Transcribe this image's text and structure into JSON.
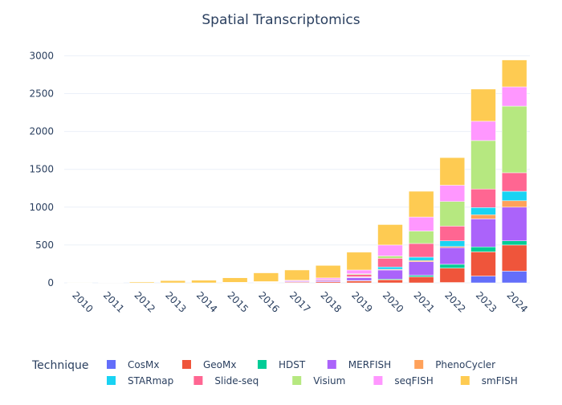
{
  "chart_data": {
    "type": "bar",
    "stacked": true,
    "title": "Spatial Transcriptomics",
    "xlabel": "",
    "ylabel": "",
    "categories": [
      "2010",
      "2011",
      "2012",
      "2013",
      "2014",
      "2015",
      "2016",
      "2017",
      "2018",
      "2019",
      "2020",
      "2021",
      "2022",
      "2023",
      "2024"
    ],
    "ylim": [
      0,
      3100
    ],
    "yticks": [
      0,
      500,
      1000,
      1500,
      2000,
      2500,
      3000
    ],
    "ytick_labels": [
      "0",
      "500",
      "1000",
      "1500",
      "2000",
      "2500",
      "3000"
    ],
    "grid": true,
    "legend": {
      "title": "Technique",
      "placement": "bottom"
    },
    "series": [
      {
        "name": "CosMx",
        "color": "#636efa",
        "values": [
          0,
          0,
          0,
          0,
          0,
          0,
          0,
          0,
          0,
          0,
          0,
          0,
          5,
          90,
          155
        ]
      },
      {
        "name": "GeoMx",
        "color": "#ef553b",
        "values": [
          0,
          0,
          0,
          0,
          0,
          3,
          5,
          10,
          15,
          25,
          40,
          80,
          190,
          320,
          345
        ]
      },
      {
        "name": "HDST",
        "color": "#00cc96",
        "values": [
          0,
          0,
          0,
          0,
          0,
          0,
          0,
          0,
          0,
          5,
          10,
          20,
          50,
          65,
          55
        ]
      },
      {
        "name": "MERFISH",
        "color": "#ab63fa",
        "values": [
          0,
          0,
          0,
          0,
          0,
          2,
          5,
          10,
          15,
          40,
          120,
          180,
          220,
          370,
          445
        ]
      },
      {
        "name": "PhenoCycler",
        "color": "#ffa15a",
        "values": [
          0,
          0,
          0,
          0,
          0,
          0,
          0,
          0,
          0,
          5,
          10,
          15,
          15,
          55,
          85
        ]
      },
      {
        "name": "STARmap",
        "color": "#19d3f3",
        "values": [
          0,
          0,
          0,
          0,
          0,
          0,
          0,
          0,
          0,
          5,
          30,
          45,
          75,
          95,
          125
        ]
      },
      {
        "name": "Slide-seq",
        "color": "#ff6692",
        "values": [
          0,
          0,
          0,
          0,
          0,
          0,
          2,
          5,
          10,
          30,
          115,
          180,
          195,
          245,
          245
        ]
      },
      {
        "name": "Visium",
        "color": "#b6e880",
        "values": [
          0,
          0,
          0,
          0,
          0,
          0,
          0,
          0,
          5,
          10,
          30,
          165,
          325,
          640,
          880
        ]
      },
      {
        "name": "seqFISH",
        "color": "#ff97ff",
        "values": [
          0,
          0,
          0,
          0,
          0,
          2,
          5,
          10,
          20,
          50,
          145,
          185,
          215,
          255,
          255
        ]
      },
      {
        "name": "smFISH",
        "color": "#fecb52",
        "values": [
          1,
          5,
          12,
          30,
          35,
          60,
          115,
          135,
          165,
          235,
          270,
          340,
          365,
          425,
          355
        ]
      }
    ]
  }
}
